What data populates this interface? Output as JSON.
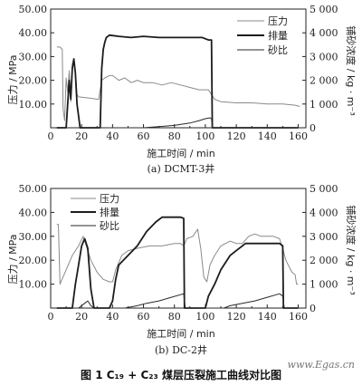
{
  "chart_data": [
    {
      "type": "line",
      "caption": "(a) DCMT-3井",
      "xlabel": "施工时间 / min",
      "ylabel": "压力 / MPa",
      "y2label": "铺砂浓度 / kg · m⁻³",
      "xlim": [
        0,
        165
      ],
      "ylim": [
        0,
        50
      ],
      "y2lim": [
        0,
        5000
      ],
      "xticks": [
        "0",
        "20",
        "40",
        "60",
        "80",
        "100",
        "120",
        "140",
        "160"
      ],
      "yticks": [
        "10.00",
        "20.00",
        "30.00",
        "40.00",
        "50.00"
      ],
      "y2ticks": [
        "1 000",
        "2 000",
        "3 000",
        "4 000",
        "5 000"
      ],
      "legend_position": "top-right",
      "series": [
        {
          "name": "压力",
          "axis": "left",
          "style": "thin-gray",
          "points": [
            [
              4,
              34
            ],
            [
              6,
              34
            ],
            [
              7.5,
              33
            ],
            [
              8,
              8
            ],
            [
              9,
              3
            ],
            [
              10,
              21
            ],
            [
              11,
              15
            ],
            [
              12,
              24
            ],
            [
              13,
              11
            ],
            [
              14,
              27
            ],
            [
              15,
              28
            ],
            [
              16,
              24
            ],
            [
              17,
              14
            ],
            [
              18,
              13
            ],
            [
              25,
              12.5
            ],
            [
              31,
              12
            ],
            [
              33,
              20
            ],
            [
              35,
              21
            ],
            [
              38,
              22
            ],
            [
              40,
              22
            ],
            [
              44,
              20
            ],
            [
              48,
              21
            ],
            [
              52,
              19
            ],
            [
              56,
              20
            ],
            [
              60,
              19
            ],
            [
              66,
              19
            ],
            [
              72,
              18
            ],
            [
              78,
              19
            ],
            [
              84,
              18
            ],
            [
              90,
              17
            ],
            [
              96,
              16
            ],
            [
              102,
              16
            ],
            [
              104,
              14
            ],
            [
              106,
              12
            ],
            [
              110,
              11
            ],
            [
              120,
              10.5
            ],
            [
              130,
              10.5
            ],
            [
              140,
              10
            ],
            [
              150,
              10
            ],
            [
              158,
              9.5
            ],
            [
              161,
              9
            ]
          ]
        },
        {
          "name": "排量",
          "axis": "left",
          "style": "bold-dark",
          "points": [
            [
              4,
              0
            ],
            [
              10,
              0
            ],
            [
              12,
              20
            ],
            [
              13,
              12
            ],
            [
              14,
              25
            ],
            [
              15,
              29
            ],
            [
              16,
              23
            ],
            [
              17,
              10
            ],
            [
              19,
              0
            ],
            [
              32,
              0
            ],
            [
              33,
              25
            ],
            [
              34,
              33
            ],
            [
              35,
              36
            ],
            [
              36,
              38
            ],
            [
              38,
              39
            ],
            [
              44,
              38.5
            ],
            [
              52,
              38
            ],
            [
              60,
              38.5
            ],
            [
              70,
              38
            ],
            [
              80,
              38
            ],
            [
              90,
              38
            ],
            [
              98,
              38
            ],
            [
              102,
              37
            ],
            [
              104,
              37
            ],
            [
              104.5,
              0
            ],
            [
              160,
              0
            ]
          ]
        },
        {
          "name": "砂比",
          "axis": "right",
          "style": "thin-dark",
          "points": [
            [
              30,
              0
            ],
            [
              60,
              0
            ],
            [
              70,
              50
            ],
            [
              80,
              100
            ],
            [
              90,
              200
            ],
            [
              96,
              300
            ],
            [
              100,
              380
            ],
            [
              103,
              420
            ],
            [
              104,
              380
            ],
            [
              104.5,
              0
            ],
            [
              160,
              0
            ]
          ]
        }
      ]
    },
    {
      "type": "line",
      "caption": "(b) DC-2井",
      "xlabel": "施工时间 / min",
      "ylabel": "压力 / MPa",
      "y2label": "铺砂浓度 / kg · m⁻³",
      "xlim": [
        0,
        165
      ],
      "ylim": [
        0,
        50
      ],
      "y2lim": [
        0,
        5000
      ],
      "xticks": [
        "0",
        "20",
        "40",
        "60",
        "80",
        "100",
        "120",
        "140",
        "160"
      ],
      "yticks": [
        "10.00",
        "20.00",
        "30.00",
        "40.00",
        "50.00"
      ],
      "y2ticks": [
        "1 000",
        "2 000",
        "3 000",
        "4 000",
        "5 000"
      ],
      "legend_position": "top-center",
      "series": [
        {
          "name": "压力",
          "axis": "left",
          "style": "thin-gray",
          "points": [
            [
              4,
              35
            ],
            [
              5,
              35
            ],
            [
              6,
              10
            ],
            [
              10,
              16
            ],
            [
              14,
              22
            ],
            [
              18,
              26
            ],
            [
              21,
              30
            ],
            [
              23,
              26
            ],
            [
              26,
              20
            ],
            [
              30,
              15
            ],
            [
              34,
              12
            ],
            [
              38,
              11
            ],
            [
              40,
              11
            ],
            [
              42,
              16
            ],
            [
              46,
              22
            ],
            [
              50,
              24
            ],
            [
              56,
              25
            ],
            [
              64,
              26
            ],
            [
              72,
              26
            ],
            [
              80,
              27
            ],
            [
              84,
              27
            ],
            [
              86,
              26
            ],
            [
              88,
              29
            ],
            [
              92,
              30
            ],
            [
              95,
              33
            ],
            [
              97,
              25
            ],
            [
              99,
              13
            ],
            [
              101,
              11
            ],
            [
              103,
              18
            ],
            [
              106,
              22
            ],
            [
              110,
              26
            ],
            [
              116,
              28
            ],
            [
              120,
              27
            ],
            [
              124,
              27
            ],
            [
              128,
              30
            ],
            [
              132,
              31
            ],
            [
              136,
              30
            ],
            [
              140,
              30
            ],
            [
              144,
              30
            ],
            [
              148,
              29
            ],
            [
              150,
              25
            ],
            [
              152,
              20
            ],
            [
              156,
              15
            ],
            [
              158,
              14
            ],
            [
              159,
              10
            ],
            [
              160,
              10
            ]
          ]
        },
        {
          "name": "排量",
          "axis": "left",
          "style": "bold-dark",
          "points": [
            [
              4,
              0
            ],
            [
              14,
              0
            ],
            [
              16,
              10
            ],
            [
              18,
              18
            ],
            [
              20,
              26
            ],
            [
              22,
              29
            ],
            [
              24,
              25
            ],
            [
              26,
              8
            ],
            [
              28,
              0
            ],
            [
              38,
              0
            ],
            [
              40,
              3
            ],
            [
              42,
              12
            ],
            [
              44,
              18
            ],
            [
              50,
              22
            ],
            [
              56,
              26
            ],
            [
              62,
              32
            ],
            [
              68,
              36
            ],
            [
              72,
              38
            ],
            [
              80,
              38
            ],
            [
              84,
              38
            ],
            [
              86,
              37.5
            ],
            [
              86.5,
              0
            ],
            [
              100,
              0
            ],
            [
              102,
              5
            ],
            [
              106,
              10
            ],
            [
              110,
              16
            ],
            [
              116,
              22
            ],
            [
              120,
              24
            ],
            [
              126,
              27
            ],
            [
              130,
              27
            ],
            [
              136,
              27
            ],
            [
              140,
              27
            ],
            [
              148,
              27
            ],
            [
              150,
              26
            ],
            [
              150.5,
              0
            ],
            [
              160,
              0
            ]
          ]
        },
        {
          "name": "砂比",
          "axis": "right",
          "style": "thin-dark",
          "points": [
            [
              4,
              0
            ],
            [
              18,
              0
            ],
            [
              22,
              200
            ],
            [
              24,
              300
            ],
            [
              26,
              100
            ],
            [
              28,
              0
            ],
            [
              48,
              0
            ],
            [
              56,
              100
            ],
            [
              62,
              200
            ],
            [
              70,
              300
            ],
            [
              78,
              450
            ],
            [
              86,
              600
            ],
            [
              87,
              0
            ],
            [
              112,
              0
            ],
            [
              116,
              100
            ],
            [
              124,
              200
            ],
            [
              132,
              300
            ],
            [
              140,
              450
            ],
            [
              148,
              600
            ],
            [
              150,
              500
            ],
            [
              151,
              0
            ],
            [
              160,
              0
            ]
          ]
        }
      ]
    }
  ],
  "figure_caption": "图 1    C₁₉ + C₂₃ 煤层压裂施工曲线对比图",
  "watermark": "www.Egas.cn",
  "colors": {
    "pressure": "#8a8a8a",
    "rate": "#1c1c1c",
    "sand": "#2a2a2a",
    "axis": "#222222"
  }
}
